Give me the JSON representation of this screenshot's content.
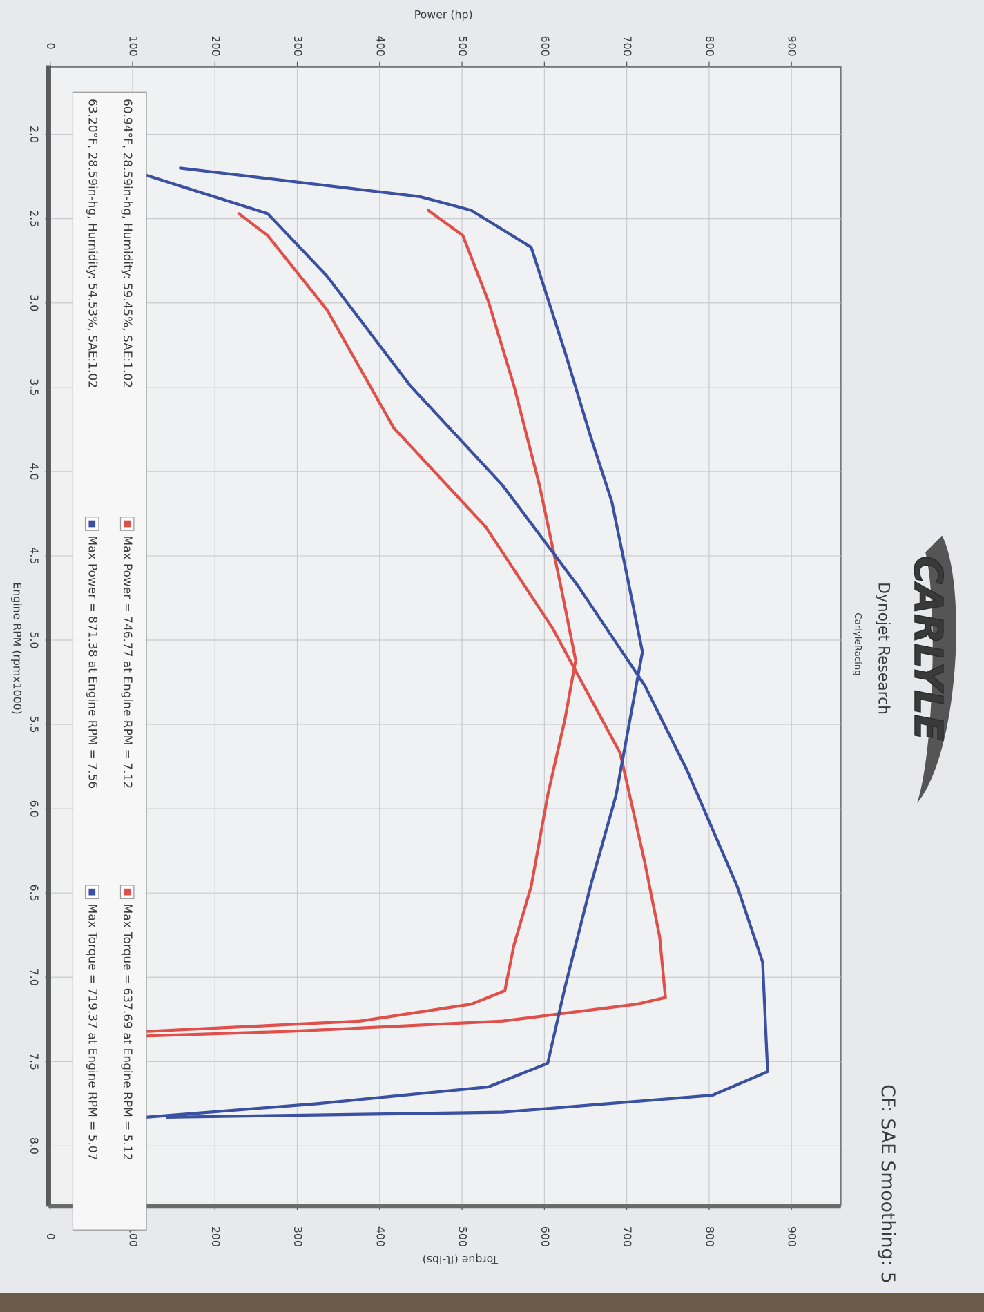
{
  "chart_data": {
    "type": "line",
    "title": "CF: SAE Smoothing: 5",
    "logo": "CARLYLE",
    "subtitle": "Dynojet Research",
    "caption": "CarlyleRacing",
    "x_label": "Engine RPM (rpmx1000)",
    "y_label": "Power (hp)",
    "y2_label": "Torque (ft-lbs)",
    "xlim": [
      1.6,
      8.35
    ],
    "xticks": [
      {
        "value": 2,
        "label": "2.0"
      },
      2.5,
      {
        "value": 3,
        "label": "3.0"
      },
      3.5,
      {
        "value": 4,
        "label": "4.0"
      },
      4.5,
      {
        "value": 5,
        "label": "5.0"
      },
      5.5,
      {
        "value": 6,
        "label": "6.0"
      },
      6.5,
      {
        "value": 7,
        "label": "7.0"
      },
      7.5,
      {
        "value": 8,
        "label": "8.0"
      }
    ],
    "ylim": [
      0,
      960
    ],
    "yticks": [
      0,
      100,
      200,
      300,
      400,
      500,
      600,
      700,
      800,
      900
    ],
    "y2lim": [
      0,
      960
    ],
    "y2ticks": [
      0,
      100,
      200,
      300,
      400,
      500,
      600,
      700,
      800,
      900
    ],
    "grid": true,
    "series": [
      {
        "color": "#e0504a",
        "x": [
          2.47,
          2.6,
          3.04,
          3.74,
          4.33,
          4.93,
          5.67,
          6.32,
          6.76,
          7.12,
          7.16,
          7.26,
          7.32,
          7.35
        ],
        "values": [
          229,
          264,
          336,
          417,
          529,
          610,
          692,
          722,
          740,
          747,
          712,
          549,
          295,
          107
        ]
      },
      {
        "color": "#e0504a",
        "axis": "y2",
        "x": [
          2.45,
          2.6,
          2.99,
          3.49,
          4.08,
          4.68,
          5.12,
          5.47,
          5.92,
          6.46,
          6.81,
          7.08,
          7.16,
          7.26,
          7.33
        ],
        "values": [
          459,
          501,
          532,
          563,
          594,
          620,
          638,
          625,
          604,
          584,
          563,
          552,
          511,
          376,
          80
        ]
      },
      {
        "color": "#3a50a0",
        "x": [
          2.22,
          2.47,
          2.84,
          3.49,
          4.08,
          4.68,
          5.27,
          5.77,
          6.12,
          6.46,
          6.91,
          7.56,
          7.7,
          7.8,
          7.83
        ],
        "values": [
          102,
          264,
          336,
          437,
          549,
          641,
          722,
          773,
          804,
          834,
          865,
          871,
          804,
          549,
          142
        ]
      },
      {
        "color": "#3a50a0",
        "axis": "y2",
        "x": [
          2.2,
          2.37,
          2.45,
          2.67,
          3.29,
          3.79,
          4.18,
          4.68,
          5.07,
          5.92,
          6.46,
          7.06,
          7.51,
          7.65,
          7.75,
          7.83
        ],
        "values": [
          158,
          449,
          511,
          584,
          625,
          656,
          682,
          703,
          719,
          687,
          656,
          625,
          604,
          532,
          324,
          116
        ]
      }
    ],
    "legend": [
      {
        "conditions": "60.94°F, 28.59in-hg, Humidity: 59.45%, SAE:1.02",
        "color": "#e0504a",
        "items": [
          "Max Power = 746.77 at Engine RPM = 7.12",
          "Max Torque = 637.69 at Engine RPM = 5.12"
        ]
      },
      {
        "conditions": "63.20°F, 28.59in-hg, Humidity: 54.53%, SAE:1.02",
        "color": "#3a50a0",
        "items": [
          "Max Power = 871.38 at Engine RPM = 7.56",
          "Max Torque = 719.37 at Engine RPM = 5.07"
        ]
      }
    ]
  }
}
